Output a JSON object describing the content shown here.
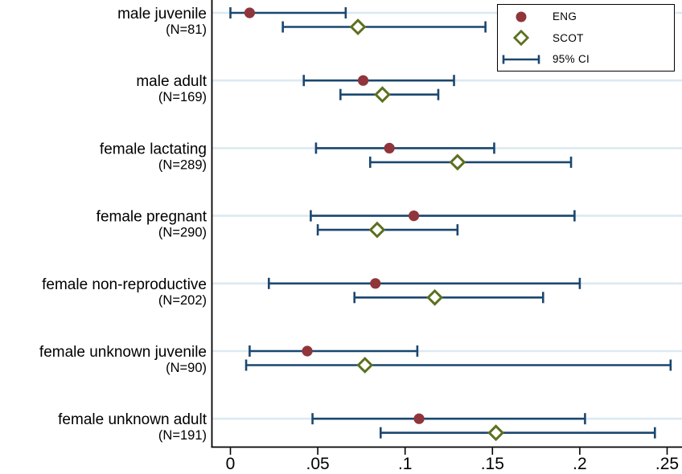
{
  "chart_data": {
    "type": "scatter",
    "subtype": "horizontal-dot-with-ci",
    "title": "",
    "xlabel": "",
    "ylabel": "",
    "xlim": [
      0,
      0.258
    ],
    "x_tick_labels": [
      "0",
      ".05",
      ".1",
      ".15",
      ".2",
      ".25"
    ],
    "x_tick_values": [
      0,
      0.05,
      0.1,
      0.15,
      0.2,
      0.25
    ],
    "grid": "horizontal",
    "legend_position": "top-right",
    "categories": [
      {
        "label": "male juvenile",
        "n_label": "(N=81)"
      },
      {
        "label": "male adult",
        "n_label": "(N=169)"
      },
      {
        "label": "female lactating",
        "n_label": "(N=289)"
      },
      {
        "label": "female pregnant",
        "n_label": "(N=290)"
      },
      {
        "label": "female non-reproductive",
        "n_label": "(N=202)"
      },
      {
        "label": "female unknown juvenile",
        "n_label": "(N=90)"
      },
      {
        "label": "female unknown adult",
        "n_label": "(N=191)"
      }
    ],
    "series": [
      {
        "name": "ENG",
        "marker": "filled-circle",
        "marker_color": "#90353B",
        "points": [
          {
            "value": 0.011,
            "lo": 0.0,
            "hi": 0.066
          },
          {
            "value": 0.076,
            "lo": 0.042,
            "hi": 0.128
          },
          {
            "value": 0.091,
            "lo": 0.049,
            "hi": 0.151
          },
          {
            "value": 0.105,
            "lo": 0.046,
            "hi": 0.197
          },
          {
            "value": 0.083,
            "lo": 0.022,
            "hi": 0.2
          },
          {
            "value": 0.044,
            "lo": 0.011,
            "hi": 0.107
          },
          {
            "value": 0.108,
            "lo": 0.047,
            "hi": 0.203
          }
        ]
      },
      {
        "name": "SCOT",
        "marker": "open-diamond",
        "marker_color": "#5C701F",
        "points": [
          {
            "value": 0.073,
            "lo": 0.03,
            "hi": 0.146
          },
          {
            "value": 0.087,
            "lo": 0.063,
            "hi": 0.119
          },
          {
            "value": 0.13,
            "lo": 0.08,
            "hi": 0.195
          },
          {
            "value": 0.084,
            "lo": 0.05,
            "hi": 0.13
          },
          {
            "value": 0.117,
            "lo": 0.071,
            "hi": 0.179
          },
          {
            "value": 0.077,
            "lo": 0.009,
            "hi": 0.252
          },
          {
            "value": 0.152,
            "lo": 0.086,
            "hi": 0.243
          }
        ]
      }
    ],
    "ci_label": "95% CI",
    "colors": {
      "ci": "#1A476F",
      "grid": "#DCE9F2",
      "axis": "#000000",
      "text": "#000000",
      "background": "#FFFFFF"
    }
  }
}
